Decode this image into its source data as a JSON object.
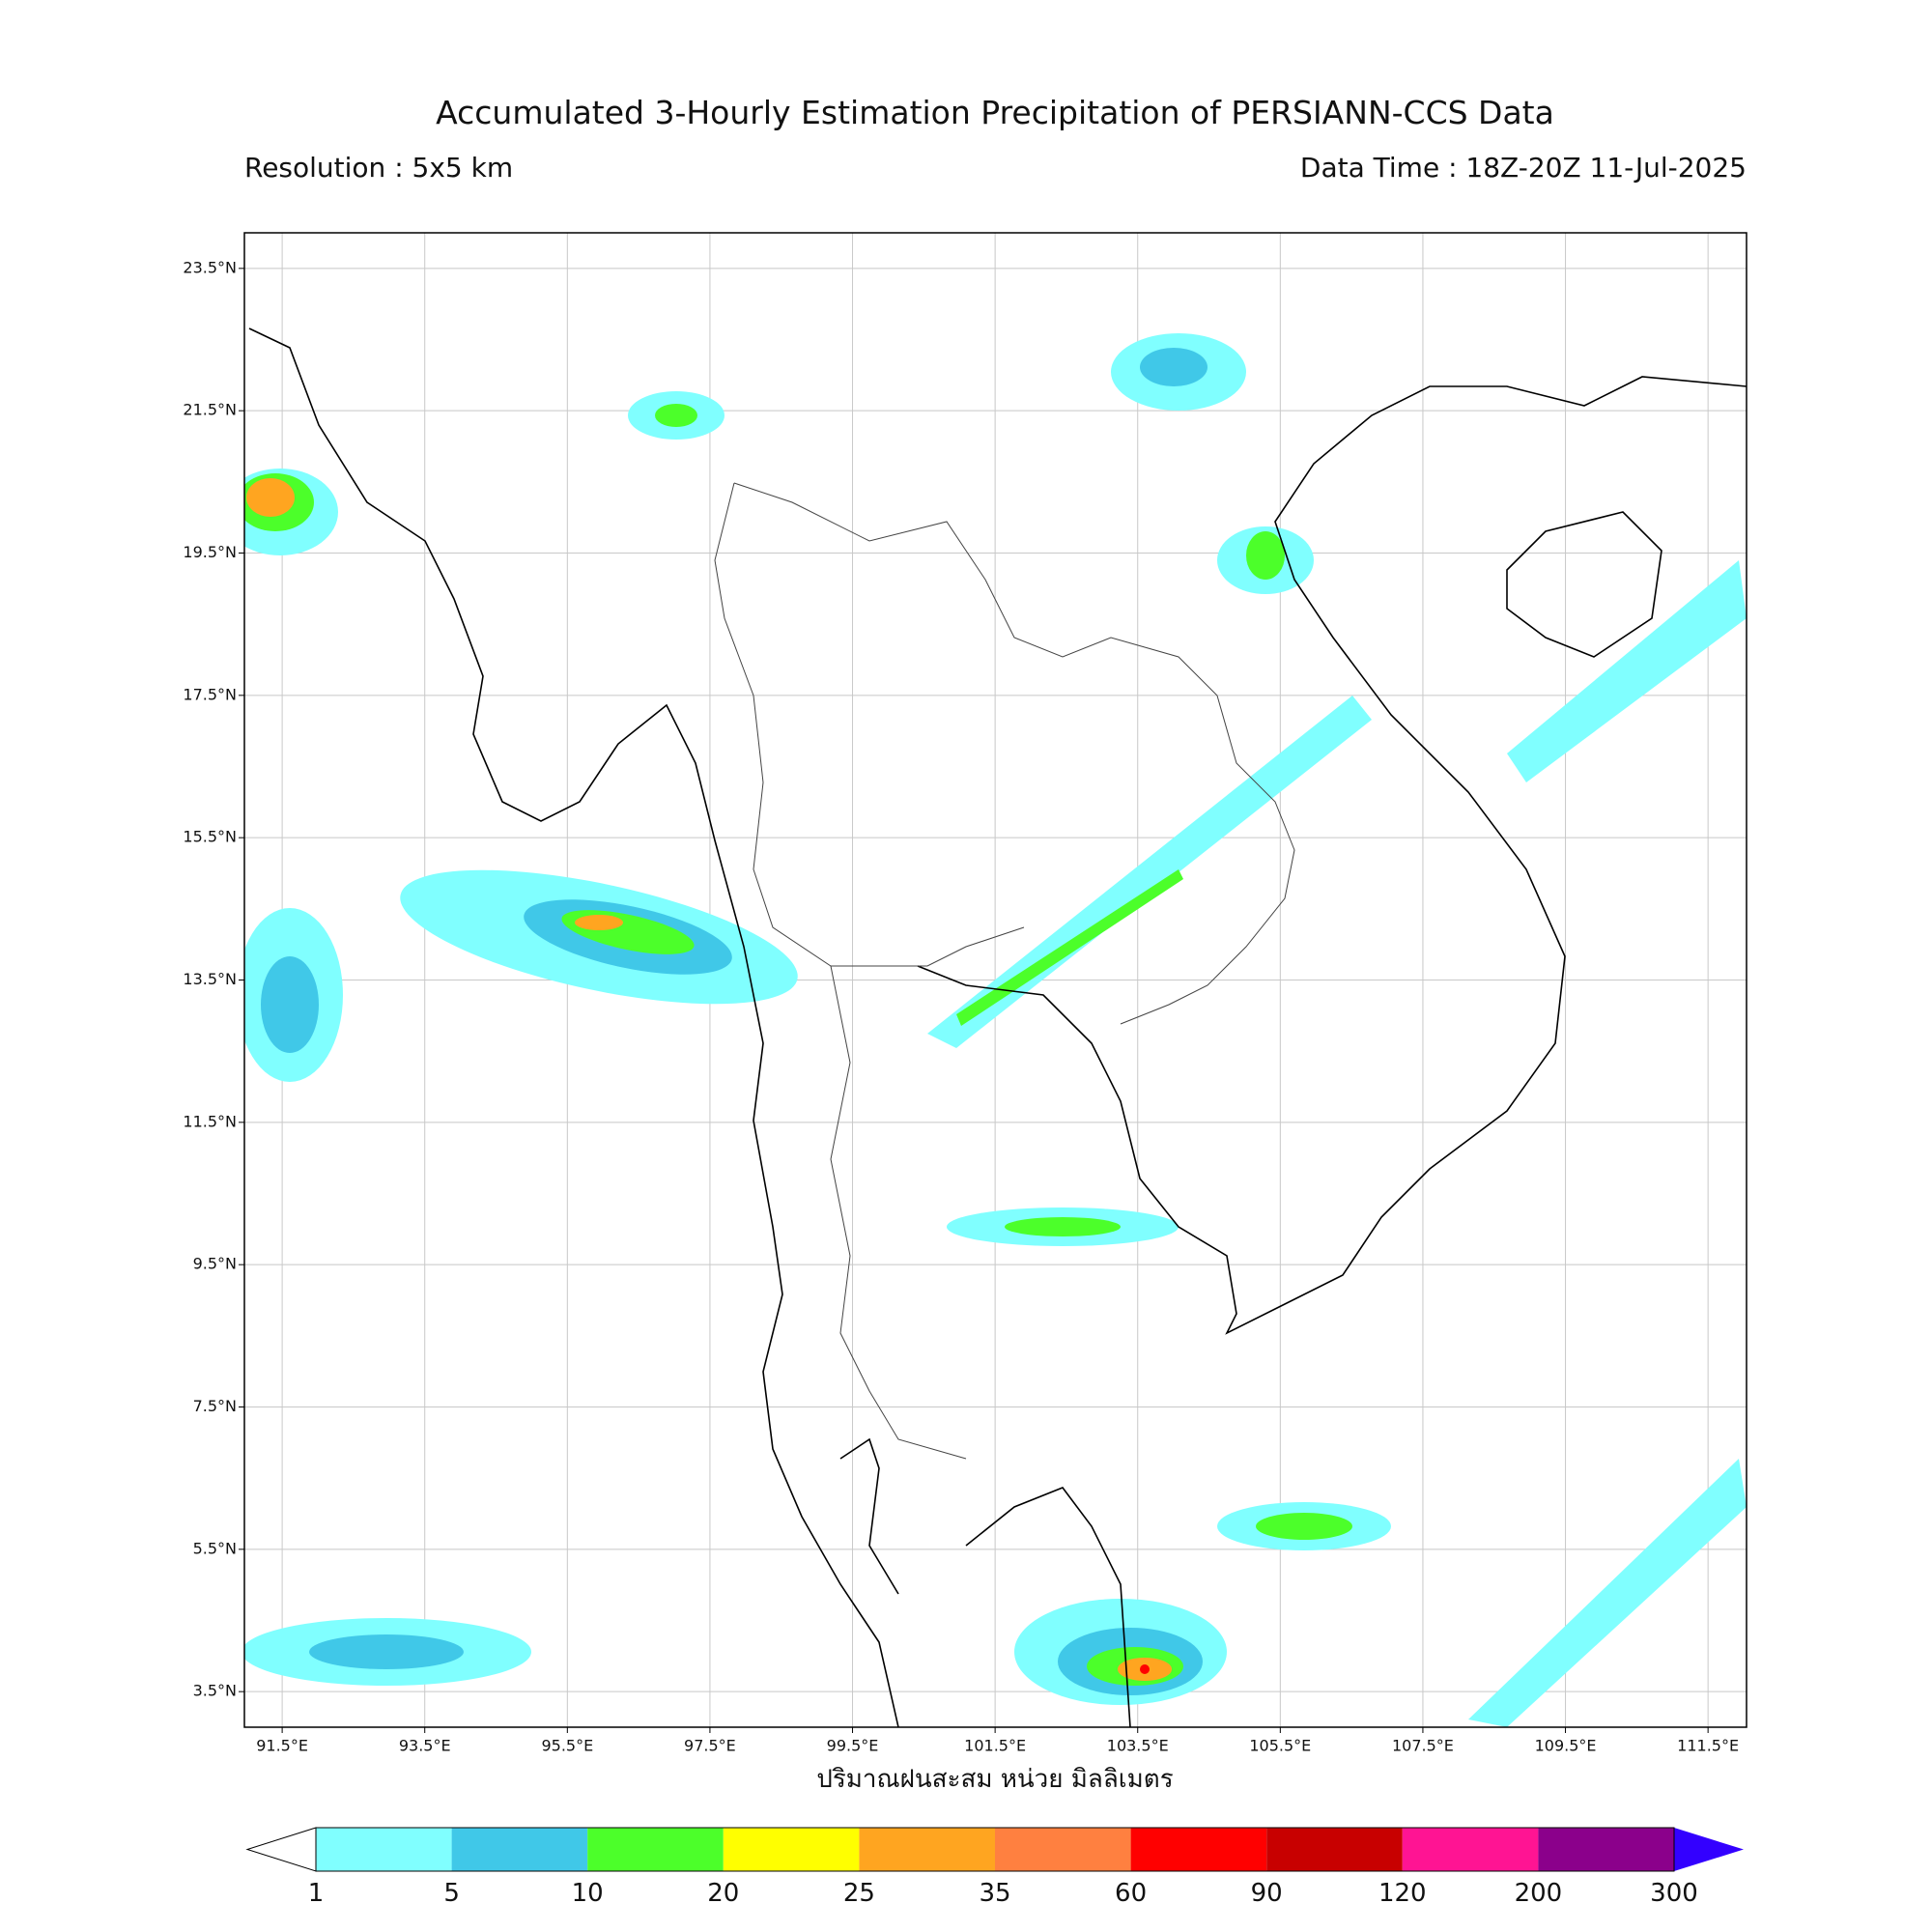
{
  "chart_data": {
    "type": "map",
    "title": "Accumulated 3-Hourly Estimation Precipitation of PERSIANN-CCS Data",
    "subtitle_left": "Resolution : 5x5 km",
    "subtitle_right": "Data Time : 18Z-20Z 11-Jul-2025",
    "x_label": "ปริมาณฝนสะสม หน่วย มิลลิเมตร",
    "xlim": [
      90.97,
      112.04
    ],
    "ylim": [
      3.0,
      24.0
    ],
    "xticks": [
      {
        "value": 91.5,
        "label": "91.5°E"
      },
      {
        "value": 93.5,
        "label": "93.5°E"
      },
      {
        "value": 95.5,
        "label": "95.5°E"
      },
      {
        "value": 97.5,
        "label": "97.5°E"
      },
      {
        "value": 99.5,
        "label": "99.5°E"
      },
      {
        "value": 101.5,
        "label": "101.5°E"
      },
      {
        "value": 103.5,
        "label": "103.5°E"
      },
      {
        "value": 105.5,
        "label": "105.5°E"
      },
      {
        "value": 107.5,
        "label": "107.5°E"
      },
      {
        "value": 109.5,
        "label": "109.5°E"
      },
      {
        "value": 111.5,
        "label": "111.5°E"
      }
    ],
    "yticks": [
      {
        "value": 23.5,
        "label": "23.5°N"
      },
      {
        "value": 21.5,
        "label": "21.5°N"
      },
      {
        "value": 19.5,
        "label": "19.5°N"
      },
      {
        "value": 17.5,
        "label": "17.5°N"
      },
      {
        "value": 15.5,
        "label": "15.5°N"
      },
      {
        "value": 13.5,
        "label": "13.5°N"
      },
      {
        "value": 11.5,
        "label": "11.5°N"
      },
      {
        "value": 9.5,
        "label": "9.5°N"
      },
      {
        "value": 7.5,
        "label": "7.5°N"
      },
      {
        "value": 5.5,
        "label": "5.5°N"
      },
      {
        "value": 3.5,
        "label": "3.5°N"
      }
    ],
    "grid": true,
    "colorbar": {
      "levels": [
        1,
        5,
        10,
        20,
        25,
        35,
        60,
        90,
        120,
        200,
        300
      ],
      "colors": [
        "#80ffff",
        "#40c8e8",
        "#4cff2a",
        "#ffff00",
        "#ffa520",
        "#ff8040",
        "#ff0000",
        "#c80000",
        "#ff1493",
        "#8b008b"
      ],
      "under_color": "#ffffff",
      "over_color": "#3300ff"
    }
  }
}
